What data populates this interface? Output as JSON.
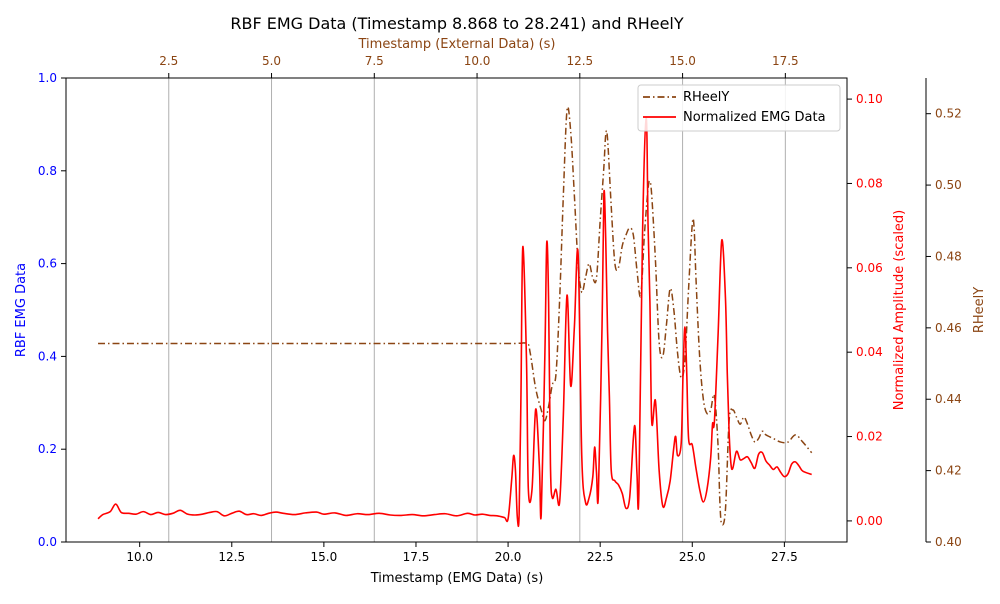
{
  "chart_data": {
    "type": "line",
    "title": "RBF EMG Data (Timestamp 8.868 to 28.241) and RHeelY",
    "xlabel": "Timestamp (EMG Data) (s)",
    "xlabel_top": "Timestamp (External Data) (s)",
    "ylabel_left": "RBF EMG Data",
    "ylabel_right": "Normalized Amplitude (scaled)",
    "ylabel_far_right": "RHeelY",
    "xlim": [
      8.0,
      29.2
    ],
    "xlim_top": [
      0.0,
      19.0
    ],
    "ylim_left": [
      0,
      1
    ],
    "ylim_right": [
      -0.005,
      0.105
    ],
    "ylim_far_right": [
      0.4,
      0.53
    ],
    "grid": "vertical lines at top-axis ticks",
    "legend_position": "top-right",
    "colors": {
      "left_axis": "#0000ff",
      "right_axis": "#ff0000",
      "far_right_axis": "#8b4513",
      "grid": "#b0b0b0"
    },
    "x_ticks": [
      "10.0",
      "12.5",
      "15.0",
      "17.5",
      "20.0",
      "22.5",
      "25.0",
      "27.5"
    ],
    "x_ticks_top": [
      "2.5",
      "5.0",
      "7.5",
      "10.0",
      "12.5",
      "15.0",
      "17.5"
    ],
    "y_ticks_left": [
      "0.0",
      "0.2",
      "0.4",
      "0.6",
      "0.8",
      "1.0"
    ],
    "y_ticks_right": [
      "0.00",
      "0.02",
      "0.04",
      "0.06",
      "0.08",
      "0.10"
    ],
    "y_ticks_far_right": [
      "0.40",
      "0.42",
      "0.44",
      "0.46",
      "0.48",
      "0.50",
      "0.52"
    ],
    "series": [
      {
        "name": "RHeelY",
        "axis": "far_right",
        "color": "#8b4513",
        "style": "dash-dot",
        "points": [
          [
            8.87,
            0.4556
          ],
          [
            10.0,
            0.4556
          ],
          [
            12.5,
            0.4556
          ],
          [
            15.0,
            0.4556
          ],
          [
            17.5,
            0.4556
          ],
          [
            20.0,
            0.4556
          ],
          [
            20.5,
            0.4556
          ],
          [
            20.6,
            0.453
          ],
          [
            20.75,
            0.443
          ],
          [
            20.9,
            0.437
          ],
          [
            21.0,
            0.434
          ],
          [
            21.1,
            0.438
          ],
          [
            21.2,
            0.444
          ],
          [
            21.3,
            0.447
          ],
          [
            21.4,
            0.468
          ],
          [
            21.5,
            0.497
          ],
          [
            21.6,
            0.521
          ],
          [
            21.7,
            0.515
          ],
          [
            21.8,
            0.497
          ],
          [
            21.9,
            0.478
          ],
          [
            22.0,
            0.47
          ],
          [
            22.1,
            0.474
          ],
          [
            22.2,
            0.478
          ],
          [
            22.3,
            0.474
          ],
          [
            22.4,
            0.474
          ],
          [
            22.5,
            0.49
          ],
          [
            22.6,
            0.505
          ],
          [
            22.65,
            0.514
          ],
          [
            22.7,
            0.513
          ],
          [
            22.8,
            0.494
          ],
          [
            22.9,
            0.478
          ],
          [
            23.0,
            0.477
          ],
          [
            23.1,
            0.483
          ],
          [
            23.2,
            0.486
          ],
          [
            23.3,
            0.488
          ],
          [
            23.4,
            0.486
          ],
          [
            23.5,
            0.476
          ],
          [
            23.6,
            0.469
          ],
          [
            23.7,
            0.486
          ],
          [
            23.8,
            0.499
          ],
          [
            23.85,
            0.501
          ],
          [
            23.9,
            0.497
          ],
          [
            24.0,
            0.479
          ],
          [
            24.1,
            0.456
          ],
          [
            24.2,
            0.452
          ],
          [
            24.3,
            0.461
          ],
          [
            24.4,
            0.471
          ],
          [
            24.5,
            0.465
          ],
          [
            24.6,
            0.453
          ],
          [
            24.7,
            0.446
          ],
          [
            24.8,
            0.451
          ],
          [
            24.9,
            0.471
          ],
          [
            25.0,
            0.489
          ],
          [
            25.05,
            0.488
          ],
          [
            25.1,
            0.474
          ],
          [
            25.2,
            0.452
          ],
          [
            25.3,
            0.44
          ],
          [
            25.4,
            0.436
          ],
          [
            25.5,
            0.437
          ],
          [
            25.6,
            0.441
          ],
          [
            25.7,
            0.427
          ],
          [
            25.75,
            0.411
          ],
          [
            25.8,
            0.405
          ],
          [
            25.9,
            0.409
          ],
          [
            26.0,
            0.434
          ],
          [
            26.1,
            0.437
          ],
          [
            26.2,
            0.435
          ],
          [
            26.3,
            0.433
          ],
          [
            26.4,
            0.435
          ],
          [
            26.5,
            0.433
          ],
          [
            26.6,
            0.43
          ],
          [
            26.7,
            0.428
          ],
          [
            26.8,
            0.429
          ],
          [
            26.9,
            0.431
          ],
          [
            27.0,
            0.43
          ],
          [
            27.2,
            0.429
          ],
          [
            27.4,
            0.428
          ],
          [
            27.6,
            0.428
          ],
          [
            27.8,
            0.43
          ],
          [
            28.0,
            0.428
          ],
          [
            28.241,
            0.425
          ]
        ]
      },
      {
        "name": "Normalized EMG Data",
        "axis": "right",
        "color": "#ff0000",
        "style": "solid",
        "points": [
          [
            8.87,
            0.0005
          ],
          [
            9.0,
            0.0015
          ],
          [
            9.2,
            0.0022
          ],
          [
            9.35,
            0.004
          ],
          [
            9.5,
            0.002
          ],
          [
            9.7,
            0.0018
          ],
          [
            9.9,
            0.0016
          ],
          [
            10.1,
            0.0022
          ],
          [
            10.3,
            0.0015
          ],
          [
            10.5,
            0.002
          ],
          [
            10.7,
            0.0015
          ],
          [
            10.9,
            0.0018
          ],
          [
            11.1,
            0.0025
          ],
          [
            11.3,
            0.0016
          ],
          [
            11.5,
            0.0014
          ],
          [
            11.7,
            0.0016
          ],
          [
            11.9,
            0.002
          ],
          [
            12.1,
            0.0022
          ],
          [
            12.3,
            0.0012
          ],
          [
            12.5,
            0.0018
          ],
          [
            12.7,
            0.0023
          ],
          [
            12.9,
            0.0015
          ],
          [
            13.1,
            0.0017
          ],
          [
            13.3,
            0.0013
          ],
          [
            13.5,
            0.0018
          ],
          [
            13.7,
            0.0021
          ],
          [
            13.9,
            0.0018
          ],
          [
            14.2,
            0.0015
          ],
          [
            14.5,
            0.0019
          ],
          [
            14.8,
            0.0021
          ],
          [
            15.0,
            0.0016
          ],
          [
            15.3,
            0.0019
          ],
          [
            15.6,
            0.0013
          ],
          [
            15.9,
            0.0017
          ],
          [
            16.2,
            0.0015
          ],
          [
            16.5,
            0.0018
          ],
          [
            16.8,
            0.0014
          ],
          [
            17.1,
            0.0013
          ],
          [
            17.4,
            0.0015
          ],
          [
            17.7,
            0.0012
          ],
          [
            18.0,
            0.0015
          ],
          [
            18.3,
            0.0017
          ],
          [
            18.6,
            0.0012
          ],
          [
            18.9,
            0.0018
          ],
          [
            19.1,
            0.0014
          ],
          [
            19.3,
            0.0016
          ],
          [
            19.5,
            0.0013
          ],
          [
            19.7,
            0.0012
          ],
          [
            19.9,
            0.0008
          ],
          [
            20.0,
            0.0005
          ],
          [
            20.1,
            0.01
          ],
          [
            20.15,
            0.0155
          ],
          [
            20.2,
            0.012
          ],
          [
            20.25,
            0.001
          ],
          [
            20.3,
            0.0015
          ],
          [
            20.35,
            0.03
          ],
          [
            20.4,
            0.065
          ],
          [
            20.5,
            0.038
          ],
          [
            20.55,
            0.0075
          ],
          [
            20.65,
            0.0075
          ],
          [
            20.75,
            0.0265
          ],
          [
            20.85,
            0.013
          ],
          [
            20.9,
            0.0015
          ],
          [
            21.0,
            0.04
          ],
          [
            21.05,
            0.066
          ],
          [
            21.1,
            0.052
          ],
          [
            21.15,
            0.0135
          ],
          [
            21.2,
            0.0055
          ],
          [
            21.3,
            0.0075
          ],
          [
            21.4,
            0.0045
          ],
          [
            21.5,
            0.025
          ],
          [
            21.6,
            0.0535
          ],
          [
            21.7,
            0.032
          ],
          [
            21.8,
            0.046
          ],
          [
            21.9,
            0.0635
          ],
          [
            22.0,
            0.0155
          ],
          [
            22.1,
            0.0045
          ],
          [
            22.2,
            0.0055
          ],
          [
            22.3,
            0.0105
          ],
          [
            22.35,
            0.0175
          ],
          [
            22.4,
            0.0115
          ],
          [
            22.45,
            0.006
          ],
          [
            22.55,
            0.046
          ],
          [
            22.6,
            0.0775
          ],
          [
            22.65,
            0.067
          ],
          [
            22.7,
            0.045
          ],
          [
            22.75,
            0.0295
          ],
          [
            22.8,
            0.012
          ],
          [
            22.9,
            0.0095
          ],
          [
            23.0,
            0.0085
          ],
          [
            23.1,
            0.0065
          ],
          [
            23.2,
            0.003
          ],
          [
            23.3,
            0.0055
          ],
          [
            23.4,
            0.0195
          ],
          [
            23.45,
            0.022
          ],
          [
            23.5,
            0.011
          ],
          [
            23.55,
            0.0065
          ],
          [
            23.65,
            0.068
          ],
          [
            23.75,
            0.0955
          ],
          [
            23.8,
            0.07
          ],
          [
            23.85,
            0.052
          ],
          [
            23.9,
            0.0235
          ],
          [
            24.0,
            0.0285
          ],
          [
            24.1,
            0.012
          ],
          [
            24.2,
            0.0035
          ],
          [
            24.3,
            0.0055
          ],
          [
            24.4,
            0.0095
          ],
          [
            24.5,
            0.0175
          ],
          [
            24.55,
            0.02
          ],
          [
            24.6,
            0.0155
          ],
          [
            24.7,
            0.0185
          ],
          [
            24.75,
            0.035
          ],
          [
            24.8,
            0.046
          ],
          [
            24.85,
            0.035
          ],
          [
            24.9,
            0.0195
          ],
          [
            25.0,
            0.018
          ],
          [
            25.1,
            0.0125
          ],
          [
            25.2,
            0.0075
          ],
          [
            25.3,
            0.0045
          ],
          [
            25.4,
            0.0075
          ],
          [
            25.5,
            0.015
          ],
          [
            25.55,
            0.023
          ],
          [
            25.6,
            0.0235
          ],
          [
            25.7,
            0.044
          ],
          [
            25.8,
            0.0665
          ],
          [
            25.9,
            0.053
          ],
          [
            25.95,
            0.035
          ],
          [
            26.0,
            0.021
          ],
          [
            26.05,
            0.0135
          ],
          [
            26.1,
            0.0125
          ],
          [
            26.2,
            0.0165
          ],
          [
            26.3,
            0.0145
          ],
          [
            26.4,
            0.0148
          ],
          [
            26.5,
            0.0152
          ],
          [
            26.6,
            0.0138
          ],
          [
            26.7,
            0.0125
          ],
          [
            26.8,
            0.0158
          ],
          [
            26.9,
            0.0162
          ],
          [
            27.0,
            0.0142
          ],
          [
            27.1,
            0.0132
          ],
          [
            27.2,
            0.0122
          ],
          [
            27.3,
            0.0128
          ],
          [
            27.4,
            0.0115
          ],
          [
            27.5,
            0.0105
          ],
          [
            27.6,
            0.0112
          ],
          [
            27.7,
            0.0135
          ],
          [
            27.8,
            0.014
          ],
          [
            27.9,
            0.013
          ],
          [
            28.0,
            0.0118
          ],
          [
            28.241,
            0.011
          ]
        ]
      }
    ]
  }
}
